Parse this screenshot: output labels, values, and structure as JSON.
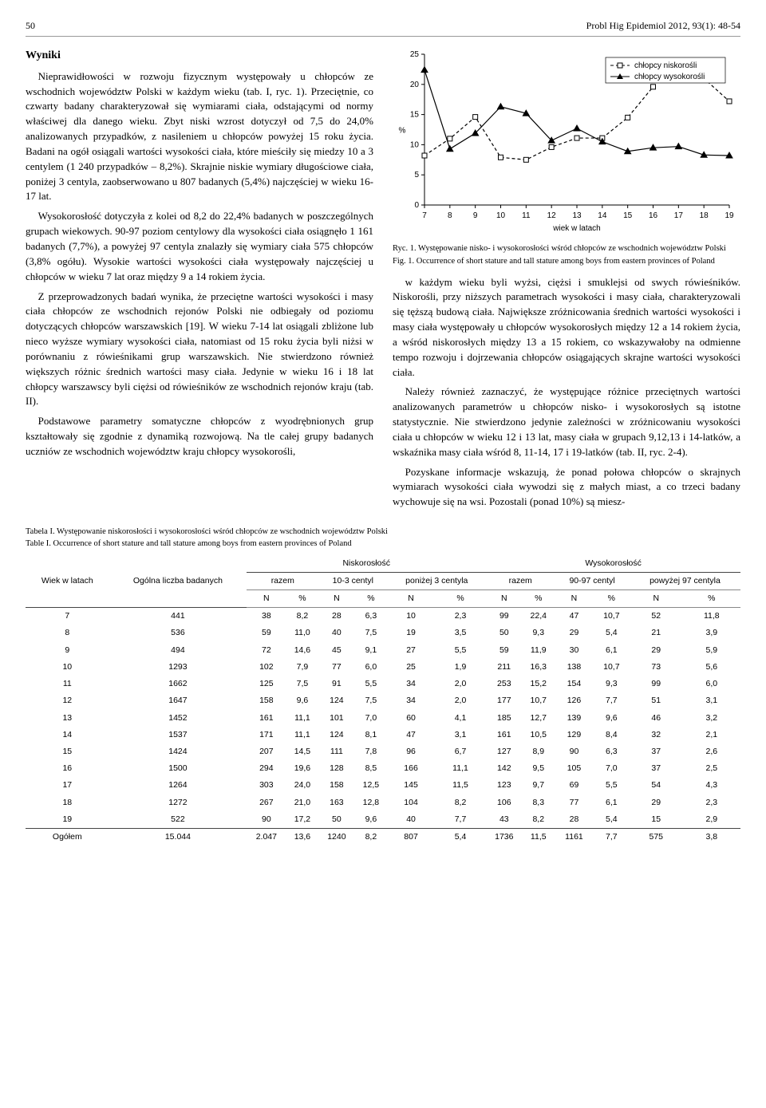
{
  "header": {
    "page_num": "50",
    "running": "Probl Hig Epidemiol 2012, 93(1): 48-54"
  },
  "section_title": "Wyniki",
  "left_col": {
    "p1": "Nieprawidłowości w rozwoju fizycznym występowały u chłopców ze wschodnich województw Polski w każdym wieku (tab. I, ryc. 1). Przeciętnie, co czwarty badany charakteryzował się wymiarami ciała, odstającymi od normy właściwej dla danego wieku. Zbyt niski wzrost dotyczył od 7,5 do 24,0% analizowanych przypadków, z nasileniem u chłopców powyżej 15 roku życia. Badani na ogół osiągali wartości wysokości ciała, które mieściły się miedzy 10 a 3 centylem (1 240 przypadków – 8,2%). Skrajnie niskie wymiary długościowe ciała, poniżej 3 centyla, zaobserwowano u 807 badanych (5,4%) najczęściej w wieku 16-17 lat.",
    "p2": "Wysokorosłość dotyczyła z kolei od 8,2 do 22,4% badanych w poszczególnych grupach wiekowych. 90-97 poziom centylowy dla wysokości ciała osiągnęło 1 161 badanych (7,7%), a powyżej 97 centyla znalazły się wymiary ciała 575 chłopców (3,8% ogółu). Wysokie wartości wysokości ciała występowały najczęściej u chłopców w wieku 7 lat oraz między 9 a 14 rokiem życia.",
    "p3": "Z przeprowadzonych badań wynika, że przeciętne wartości wysokości i masy ciała chłopców ze wschodnich rejonów Polski nie odbiegały od poziomu dotyczących chłopców warszawskich [19]. W wieku 7-14 lat osiągali zbliżone lub nieco wyższe wymiary wysokości ciała, natomiast od 15 roku życia byli niżsi w porównaniu z rówieśnikami grup warszawskich. Nie stwierdzono również większych różnic średnich wartości masy ciała. Jedynie w wieku 16 i 18 lat chłopcy warszawscy byli ciężsi od rówieśników ze wschodnich rejonów kraju (tab. II).",
    "p4": "Podstawowe parametry somatyczne chłopców z wyodrębnionych grup kształtowały się zgodnie z dynamiką rozwojową. Na tle całej grupy badanych uczniów ze wschodnich województw kraju chłopcy wysokorośli,"
  },
  "right_col": {
    "p1": "w każdym wieku byli wyżsi, ciężsi i smuklejsi od swych rówieśników. Niskorośli, przy niższych parametrach wysokości i masy ciała, charakteryzowali się tęższą budową ciała. Największe zróżnicowania średnich wartości wysokości i masy ciała występowały u chłopców wysokorosłych między 12 a 14 rokiem życia, a wśród niskorosłych między 13 a 15 rokiem, co wskazywałoby na odmienne tempo rozwoju i dojrzewania chłopców osiągających skrajne wartości wysokości ciała.",
    "p2": "Należy również zaznaczyć, że występujące różnice przeciętnych wartości analizowanych parametrów u chłopców nisko- i wysokorosłych są istotne statystycznie. Nie stwierdzono jedynie zależności w zróżnicowaniu wysokości ciała u chłopców w wieku 12 i 13 lat, masy ciała w grupach 9,12,13 i 14-latków, a wskaźnika masy ciała wśród 8, 11-14, 17 i 19-latków (tab. II, ryc. 2-4).",
    "p3": "Pozyskane informacje wskazują, że ponad połowa chłopców o skrajnych wymiarach wysokości ciała wywodzi się z małych miast, a co trzeci badany wychowuje się na wsi. Pozostali (ponad 10%) są miesz-"
  },
  "chart": {
    "type": "line",
    "x_label": "wiek w latach",
    "y_label": "%",
    "x_ticks": [
      7,
      8,
      9,
      10,
      11,
      12,
      13,
      14,
      15,
      16,
      17,
      18,
      19
    ],
    "y_ticks": [
      0,
      5,
      10,
      15,
      20,
      25
    ],
    "ylim": [
      0,
      25
    ],
    "series": [
      {
        "name": "chłopcy niskorośli",
        "dash": "4 3",
        "marker": "square",
        "values": [
          8.2,
          11.0,
          14.6,
          7.9,
          7.5,
          9.6,
          11.1,
          11.1,
          14.5,
          19.6,
          24.0,
          21.0,
          17.2
        ],
        "color": "#000000"
      },
      {
        "name": "chłopcy wysokorośli",
        "dash": "0",
        "marker": "triangle",
        "values": [
          22.4,
          9.3,
          11.9,
          16.3,
          15.2,
          10.7,
          12.7,
          10.5,
          8.9,
          9.5,
          9.7,
          8.3,
          8.2
        ],
        "color": "#000000"
      }
    ],
    "background_color": "#ffffff",
    "axis_color": "#000000",
    "fontsize_axis": 10,
    "fontsize_legend": 10,
    "caption_pl": "Ryc. 1. Występowanie nisko- i wysokorosłości wśród chłopców ze wschodnich województw Polski",
    "caption_en": "Fig. 1. Occurrence of short stature and tall stature among boys from eastern provinces of Poland"
  },
  "table": {
    "caption_pl": "Tabela I. Występowanie niskorosłości i wysokorosłości wśród chłopców ze wschodnich województw Polski",
    "caption_en": "Table I. Occurrence of short stature and tall stature among boys from eastern provinces of Poland",
    "headers": {
      "age": "Wiek w latach",
      "total": "Ogólna liczba badanych",
      "short_group": "Niskorosłość",
      "tall_group": "Wysokorosłość",
      "razem": "razem",
      "c10_3": "10-3 centyl",
      "below3": "poniżej 3 centyla",
      "c90_97": "90-97 centyl",
      "above97": "powyżej 97 centyla",
      "N": "N",
      "pct": "%"
    },
    "rows": [
      [
        "7",
        "441",
        "38",
        "8,2",
        "28",
        "6,3",
        "10",
        "2,3",
        "99",
        "22,4",
        "47",
        "10,7",
        "52",
        "11,8"
      ],
      [
        "8",
        "536",
        "59",
        "11,0",
        "40",
        "7,5",
        "19",
        "3,5",
        "50",
        "9,3",
        "29",
        "5,4",
        "21",
        "3,9"
      ],
      [
        "9",
        "494",
        "72",
        "14,6",
        "45",
        "9,1",
        "27",
        "5,5",
        "59",
        "11,9",
        "30",
        "6,1",
        "29",
        "5,9"
      ],
      [
        "10",
        "1293",
        "102",
        "7,9",
        "77",
        "6,0",
        "25",
        "1,9",
        "211",
        "16,3",
        "138",
        "10,7",
        "73",
        "5,6"
      ],
      [
        "11",
        "1662",
        "125",
        "7,5",
        "91",
        "5,5",
        "34",
        "2,0",
        "253",
        "15,2",
        "154",
        "9,3",
        "99",
        "6,0"
      ],
      [
        "12",
        "1647",
        "158",
        "9,6",
        "124",
        "7,5",
        "34",
        "2,0",
        "177",
        "10,7",
        "126",
        "7,7",
        "51",
        "3,1"
      ],
      [
        "13",
        "1452",
        "161",
        "11,1",
        "101",
        "7,0",
        "60",
        "4,1",
        "185",
        "12,7",
        "139",
        "9,6",
        "46",
        "3,2"
      ],
      [
        "14",
        "1537",
        "171",
        "11,1",
        "124",
        "8,1",
        "47",
        "3,1",
        "161",
        "10,5",
        "129",
        "8,4",
        "32",
        "2,1"
      ],
      [
        "15",
        "1424",
        "207",
        "14,5",
        "111",
        "7,8",
        "96",
        "6,7",
        "127",
        "8,9",
        "90",
        "6,3",
        "37",
        "2,6"
      ],
      [
        "16",
        "1500",
        "294",
        "19,6",
        "128",
        "8,5",
        "166",
        "11,1",
        "142",
        "9,5",
        "105",
        "7,0",
        "37",
        "2,5"
      ],
      [
        "17",
        "1264",
        "303",
        "24,0",
        "158",
        "12,5",
        "145",
        "11,5",
        "123",
        "9,7",
        "69",
        "5,5",
        "54",
        "4,3"
      ],
      [
        "18",
        "1272",
        "267",
        "21,0",
        "163",
        "12,8",
        "104",
        "8,2",
        "106",
        "8,3",
        "77",
        "6,1",
        "29",
        "2,3"
      ],
      [
        "19",
        "522",
        "90",
        "17,2",
        "50",
        "9,6",
        "40",
        "7,7",
        "43",
        "8,2",
        "28",
        "5,4",
        "15",
        "2,9"
      ]
    ],
    "total_row": [
      "Ogółem",
      "15.044",
      "2.047",
      "13,6",
      "1240",
      "8,2",
      "807",
      "5,4",
      "1736",
      "11,5",
      "1161",
      "7,7",
      "575",
      "3,8"
    ]
  }
}
